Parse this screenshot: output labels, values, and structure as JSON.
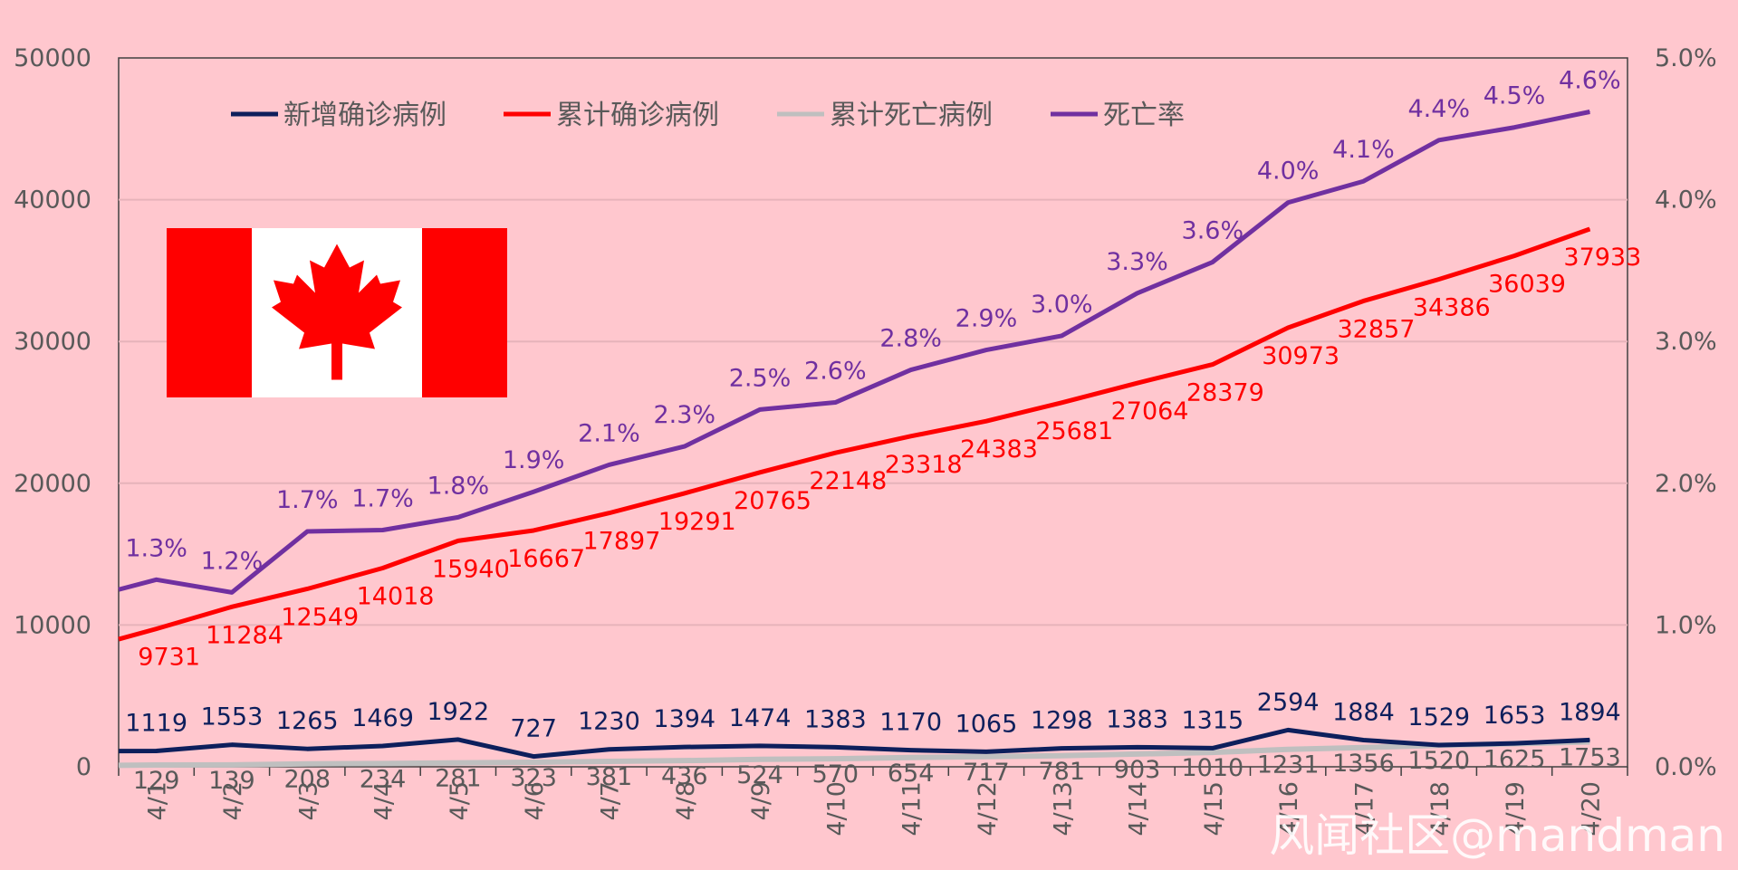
{
  "chart_data": {
    "type": "line",
    "categories": [
      "4/1",
      "4/2",
      "4/3",
      "4/4",
      "4/5",
      "4/6",
      "4/7",
      "4/8",
      "4/9",
      "4/10",
      "4/11",
      "4/12",
      "4/13",
      "4/14",
      "4/15",
      "4/16",
      "4/17",
      "4/18",
      "4/19",
      "4/20"
    ],
    "y_left": {
      "ylim": [
        0,
        50000
      ],
      "ticks": [
        0,
        10000,
        20000,
        30000,
        40000,
        50000
      ]
    },
    "y_right": {
      "ylim": [
        0,
        5.0
      ],
      "ticks": [
        "0.0%",
        "1.0%",
        "2.0%",
        "3.0%",
        "4.0%",
        "5.0%"
      ]
    },
    "grid": true,
    "legend_placement": "top",
    "series": [
      {
        "name": "新增确诊病例",
        "axis": "left",
        "color": "#0D1F5C",
        "start_value": 1110,
        "values": [
          1119,
          1553,
          1265,
          1469,
          1922,
          727,
          1230,
          1394,
          1474,
          1383,
          1170,
          1065,
          1298,
          1383,
          1315,
          2594,
          1884,
          1529,
          1653,
          1894
        ],
        "labels": [
          "1119",
          "1553",
          "1265",
          "1469",
          "1922",
          "727",
          "1230",
          "1394",
          "1474",
          "1383",
          "1170",
          "1065",
          "1298",
          "1383",
          "1315",
          "2594",
          "1884",
          "1529",
          "1653",
          "1894"
        ]
      },
      {
        "name": "累计确诊病例",
        "axis": "left",
        "color": "#FF0000",
        "start_value": 9000,
        "values": [
          9731,
          11284,
          12549,
          14018,
          15940,
          16667,
          17897,
          19291,
          20765,
          22148,
          23318,
          24383,
          25681,
          27064,
          28379,
          30973,
          32857,
          34386,
          36039,
          37933
        ],
        "labels": [
          "9731",
          "11284",
          "12549",
          "14018",
          "15940",
          "16667",
          "17897",
          "19291",
          "20765",
          "22148",
          "23318",
          "24383",
          "25681",
          "27064",
          "28379",
          "30973",
          "32857",
          "34386",
          "36039",
          "37933"
        ]
      },
      {
        "name": "累计死亡病例",
        "axis": "left",
        "color": "#BFBFBF",
        "start_value": 100,
        "values": [
          129,
          139,
          208,
          234,
          281,
          323,
          381,
          436,
          524,
          570,
          654,
          717,
          781,
          903,
          1010,
          1231,
          1356,
          1520,
          1625,
          1753
        ],
        "labels": [
          "129",
          "139",
          "208",
          "234",
          "281",
          "323",
          "381",
          "436",
          "524",
          "570",
          "654",
          "717",
          "781",
          "903",
          "1010",
          "1231",
          "1356",
          "1520",
          "1625",
          "1753"
        ]
      },
      {
        "name": "死亡率",
        "axis": "right",
        "color": "#7030A0",
        "start_value": 1.25,
        "values": [
          1.32,
          1.23,
          1.66,
          1.67,
          1.76,
          1.94,
          2.13,
          2.26,
          2.52,
          2.57,
          2.8,
          2.94,
          3.04,
          3.34,
          3.56,
          3.98,
          4.13,
          4.42,
          4.51,
          4.62
        ],
        "labels": [
          "1.3%",
          "1.2%",
          "1.7%",
          "1.7%",
          "1.8%",
          "1.9%",
          "2.1%",
          "2.3%",
          "2.5%",
          "2.6%",
          "2.8%",
          "2.9%",
          "3.0%",
          "3.3%",
          "3.6%",
          "4.0%",
          "4.1%",
          "4.4%",
          "4.5%",
          "4.6%"
        ]
      }
    ]
  },
  "decor": {
    "flag": {
      "red": "#FF0000",
      "white": "#FFFFFF",
      "icon": "canada-flag-icon"
    },
    "watermark": "风闻社区@mandman"
  }
}
